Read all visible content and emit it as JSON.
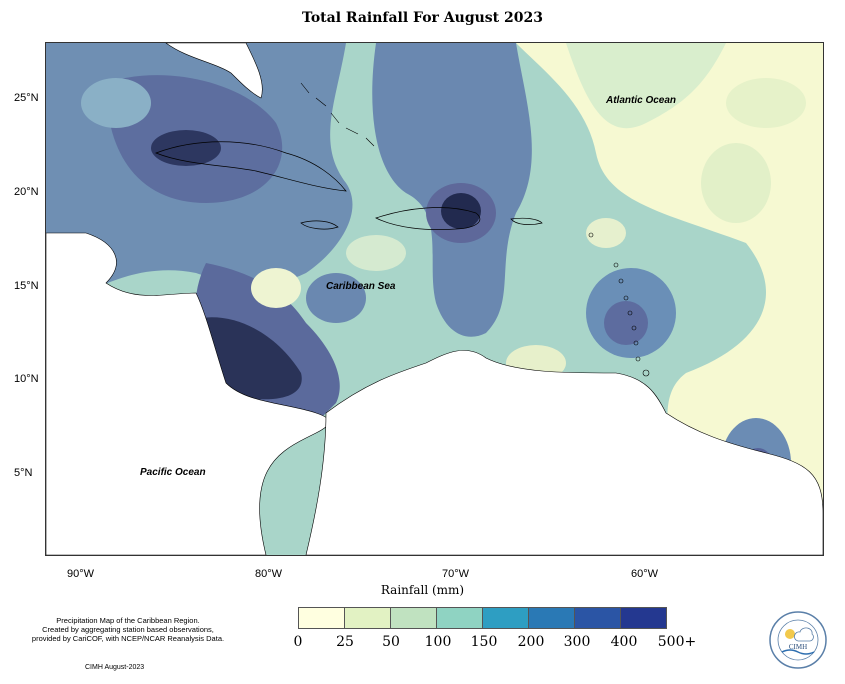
{
  "title": "Total Rainfall For August 2023",
  "x_axis_label": "Rainfall (mm)",
  "lat_labels": [
    "25°N",
    "20°N",
    "15°N",
    "10°N",
    "5°N"
  ],
  "lon_labels": [
    "90°W",
    "80°W",
    "70°W",
    "60°W"
  ],
  "ocean_labels": {
    "atlantic": "Atlantic Ocean",
    "caribbean": "Caribbean Sea",
    "pacific": "Pacific Ocean"
  },
  "legend": {
    "bins": [
      {
        "color": "#ffffe0"
      },
      {
        "color": "#e2f2c3"
      },
      {
        "color": "#c0e2c0"
      },
      {
        "color": "#8fd3c2"
      },
      {
        "color": "#2e9ec2"
      },
      {
        "color": "#2a79b5"
      },
      {
        "color": "#2b55a5"
      },
      {
        "color": "#243890"
      },
      {
        "color": "#0d1d5a"
      }
    ],
    "ticks": [
      "0",
      "25",
      "50",
      "100",
      "150",
      "200",
      "300",
      "400",
      "500+"
    ]
  },
  "caption": "Precipitation Map of the Caribbean Region.\nCreated by aggregating station based observations,\nprovided by CariCOF, with NCEP/NCAR Reanalysis Data.",
  "footer": "CIMH August-2023",
  "logo_text": "CIMH"
}
